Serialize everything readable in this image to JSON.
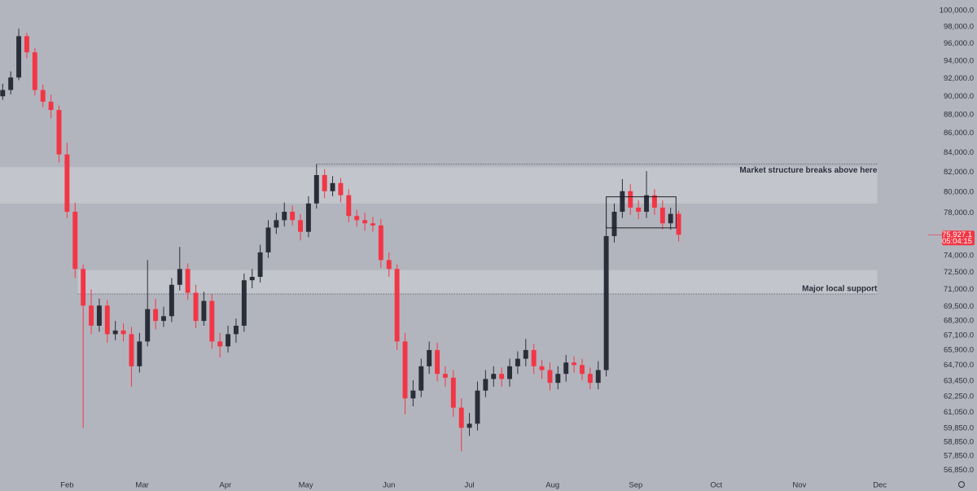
{
  "chart_data": {
    "type": "candlestick",
    "log_scale": true,
    "x": [
      -24,
      -21,
      -18,
      -15,
      -12,
      -9,
      -6,
      -3,
      0,
      3,
      6,
      9,
      12,
      15,
      18,
      21,
      24,
      27,
      30,
      33,
      36,
      39,
      42,
      45,
      48,
      51,
      54,
      57,
      60,
      63,
      66,
      69,
      72,
      75,
      78,
      81,
      84,
      87,
      90,
      93,
      96,
      99,
      102,
      105,
      108,
      111,
      114,
      117,
      120,
      123,
      126,
      129,
      132,
      135,
      138,
      141,
      144,
      147,
      150,
      153,
      156,
      159,
      162,
      165,
      168,
      171,
      174,
      177,
      180,
      183,
      186,
      189,
      192,
      195,
      198,
      201,
      204,
      207,
      210,
      213,
      216,
      219,
      222,
      225,
      228
    ],
    "open": [
      90000,
      90700,
      92100,
      96900,
      95000,
      90700,
      89400,
      88500,
      83800,
      78100,
      72800,
      69600,
      67900,
      69600,
      67200,
      67500,
      67200,
      64600,
      66600,
      69300,
      68300,
      68700,
      71400,
      72800,
      70700,
      68300,
      70000,
      66600,
      66200,
      67200,
      67900,
      71800,
      72100,
      74300,
      76600,
      77300,
      78100,
      77300,
      76200,
      78900,
      81700,
      80100,
      80900,
      79700,
      77700,
      77300,
      77000,
      76800,
      73600,
      72800,
      66600,
      62100,
      62700,
      64600,
      65900,
      64000,
      63700,
      61400,
      59900,
      60200,
      62700,
      63600,
      64000,
      63600,
      64600,
      65200,
      65900,
      64600,
      64300,
      63300,
      64000,
      64900,
      64700,
      64000,
      63300,
      64300,
      75800,
      78100,
      80100,
      78500,
      78100,
      79700,
      78500,
      77000,
      77900
    ],
    "high": [
      91400,
      92800,
      97800,
      97300,
      95500,
      91300,
      90200,
      89000,
      85000,
      79000,
      73200,
      71000,
      70200,
      70100,
      68300,
      68100,
      67800,
      67300,
      73600,
      70200,
      69500,
      72000,
      74800,
      73300,
      71400,
      70800,
      70600,
      67300,
      67900,
      68500,
      72400,
      72800,
      75000,
      77300,
      78000,
      79000,
      78700,
      77900,
      79600,
      82800,
      82300,
      81600,
      81400,
      80300,
      78300,
      78000,
      77600,
      77400,
      74300,
      73200,
      67300,
      63500,
      65200,
      66600,
      66500,
      64600,
      64300,
      62100,
      61000,
      63400,
      64300,
      64600,
      64500,
      65200,
      65800,
      66800,
      66400,
      65100,
      64900,
      64600,
      65500,
      65400,
      65200,
      64500,
      65000,
      76800,
      78900,
      81300,
      80800,
      79200,
      82100,
      80300,
      79200,
      78500,
      78200
    ],
    "low": [
      89600,
      90200,
      91800,
      94300,
      90100,
      88800,
      87600,
      83000,
      77500,
      72000,
      59900,
      67200,
      67400,
      66500,
      66700,
      66600,
      63000,
      64100,
      66200,
      67600,
      67800,
      68200,
      70900,
      70100,
      67700,
      67900,
      66000,
      65300,
      65700,
      66500,
      67400,
      71100,
      71600,
      73800,
      76000,
      76700,
      76800,
      75400,
      75700,
      78400,
      79400,
      79600,
      79000,
      77100,
      76700,
      76300,
      76200,
      72900,
      72100,
      65900,
      60900,
      61500,
      62200,
      64000,
      63400,
      63000,
      60700,
      58200,
      59300,
      59700,
      62200,
      63000,
      63000,
      63000,
      64000,
      64600,
      64000,
      63600,
      62700,
      62800,
      63400,
      64100,
      63500,
      62800,
      62800,
      63800,
      75200,
      77500,
      77800,
      77400,
      77500,
      77800,
      76400,
      76400,
      75300
    ],
    "close": [
      90700,
      92100,
      96900,
      95000,
      90700,
      89400,
      88500,
      83800,
      78100,
      72800,
      69600,
      67900,
      69600,
      67200,
      67500,
      67200,
      64600,
      66600,
      69300,
      68300,
      68700,
      71400,
      72800,
      70700,
      68300,
      70000,
      66600,
      66200,
      67200,
      67900,
      71800,
      72100,
      74300,
      76600,
      77300,
      78100,
      77300,
      76200,
      78900,
      81700,
      80100,
      80900,
      79700,
      77700,
      77300,
      77000,
      76800,
      73600,
      72800,
      66600,
      62100,
      62700,
      64600,
      65900,
      64000,
      63700,
      61400,
      59900,
      60200,
      62700,
      63600,
      64000,
      63600,
      64600,
      65200,
      65900,
      64600,
      64300,
      63300,
      64000,
      64900,
      64700,
      64000,
      63300,
      64300,
      75800,
      78100,
      80100,
      78500,
      78100,
      79700,
      78500,
      77000,
      77900,
      75927.1
    ],
    "up_color": "#2a2e39",
    "down_color": "#f23645",
    "xlim": [
      -25,
      321
    ],
    "xticks": [
      {
        "value": 0,
        "label": "Feb"
      },
      {
        "value": 28,
        "label": "Mar"
      },
      {
        "value": 59,
        "label": "Apr"
      },
      {
        "value": 89,
        "label": "May"
      },
      {
        "value": 120,
        "label": "Jun"
      },
      {
        "value": 150,
        "label": "Jul"
      },
      {
        "value": 181,
        "label": "Aug"
      },
      {
        "value": 212,
        "label": "Sep"
      },
      {
        "value": 242,
        "label": "Oct"
      },
      {
        "value": 273,
        "label": "Nov"
      },
      {
        "value": 303,
        "label": "Dec"
      }
    ],
    "ylim": [
      56150,
      101300
    ],
    "yticks": [
      {
        "value": 100000,
        "label": "100,000.0"
      },
      {
        "value": 98000,
        "label": "98,000.0"
      },
      {
        "value": 96000,
        "label": "96,000.0"
      },
      {
        "value": 94000,
        "label": "94,000.0"
      },
      {
        "value": 92000,
        "label": "92,000.0"
      },
      {
        "value": 90000,
        "label": "90,000.0"
      },
      {
        "value": 88000,
        "label": "88,000.0"
      },
      {
        "value": 86000,
        "label": "86,000.0"
      },
      {
        "value": 84000,
        "label": "84,000.0"
      },
      {
        "value": 82000,
        "label": "82,000.0"
      },
      {
        "value": 80000,
        "label": "80,000.0"
      },
      {
        "value": 78000,
        "label": "78,000.0"
      },
      {
        "value": 74000,
        "label": "74,000.0"
      },
      {
        "value": 72500,
        "label": "72,500.0"
      },
      {
        "value": 71000,
        "label": "71,000.0"
      },
      {
        "value": 69500,
        "label": "69,500.0"
      },
      {
        "value": 68300,
        "label": "68,300.0"
      },
      {
        "value": 67100,
        "label": "67,100.0"
      },
      {
        "value": 65900,
        "label": "65,900.0"
      },
      {
        "value": 64700,
        "label": "64,700.0"
      },
      {
        "value": 63450,
        "label": "63,450.0"
      },
      {
        "value": 62250,
        "label": "62,250.0"
      },
      {
        "value": 61050,
        "label": "61,050.0"
      },
      {
        "value": 59850,
        "label": "59,850.0"
      },
      {
        "value": 58850,
        "label": "58,850.0"
      },
      {
        "value": 57850,
        "label": "57,850.0"
      },
      {
        "value": 56850,
        "label": "56,850.0"
      }
    ],
    "zones": [
      {
        "from": 78900,
        "to": 82500,
        "x": [
          -25,
          302
        ],
        "label": "Market structure breaks above here"
      },
      {
        "from": 70600,
        "to": 72700,
        "x": [
          4,
          302
        ],
        "label": "Major local support"
      }
    ],
    "levels": [
      {
        "value": 82800,
        "x": [
          93,
          302
        ]
      },
      {
        "value": 70600,
        "x": [
          4,
          302
        ]
      }
    ],
    "range_box": {
      "low": 76570,
      "high": 79550,
      "x": [
        201,
        227
      ]
    },
    "last_price": {
      "value": 75927.1,
      "label": "75,927.1",
      "countdown": "05:04:15"
    }
  }
}
